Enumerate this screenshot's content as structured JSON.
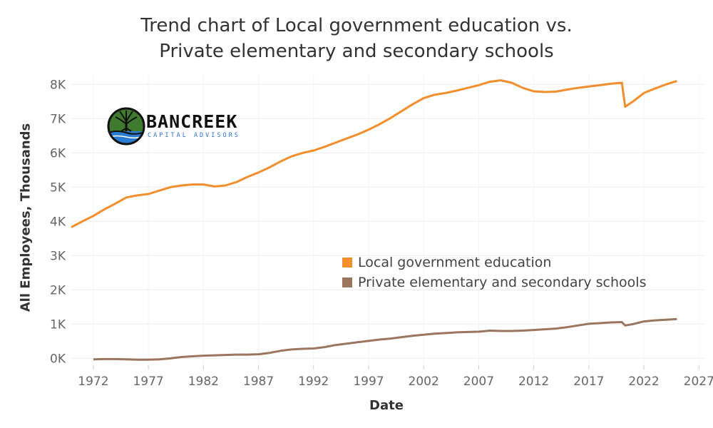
{
  "chart_data": {
    "type": "line",
    "title": [
      "Trend chart of Local government education vs.",
      "Private elementary and secondary schools"
    ],
    "xlabel": "Date",
    "ylabel": "All Employees, Thousands",
    "x_ticks": [
      "1972",
      "1977",
      "1982",
      "1987",
      "1992",
      "1997",
      "2002",
      "2007",
      "2012",
      "2017",
      "2022",
      "2027"
    ],
    "y_ticks": [
      "0K",
      "1K",
      "2K",
      "3K",
      "4K",
      "5K",
      "6K",
      "7K",
      "8K"
    ],
    "xlim": [
      1970,
      2027.5
    ],
    "ylim": [
      -200,
      8300
    ],
    "grid": true,
    "legend_position": "center-right",
    "series": [
      {
        "name": "Local government education",
        "color": "#f28e2b",
        "points": [
          [
            1970.0,
            3830
          ],
          [
            1971.0,
            4000
          ],
          [
            1972.0,
            4160
          ],
          [
            1973.0,
            4350
          ],
          [
            1974.0,
            4520
          ],
          [
            1975.0,
            4700
          ],
          [
            1976.0,
            4760
          ],
          [
            1977.0,
            4800
          ],
          [
            1978.0,
            4900
          ],
          [
            1979.0,
            5000
          ],
          [
            1980.0,
            5050
          ],
          [
            1981.0,
            5080
          ],
          [
            1982.0,
            5080
          ],
          [
            1983.0,
            5020
          ],
          [
            1984.0,
            5050
          ],
          [
            1985.0,
            5150
          ],
          [
            1986.0,
            5300
          ],
          [
            1987.0,
            5430
          ],
          [
            1988.0,
            5580
          ],
          [
            1989.0,
            5750
          ],
          [
            1990.0,
            5900
          ],
          [
            1991.0,
            6000
          ],
          [
            1992.0,
            6070
          ],
          [
            1993.0,
            6180
          ],
          [
            1994.0,
            6300
          ],
          [
            1995.0,
            6420
          ],
          [
            1996.0,
            6540
          ],
          [
            1997.0,
            6680
          ],
          [
            1998.0,
            6840
          ],
          [
            1999.0,
            7020
          ],
          [
            2000.0,
            7220
          ],
          [
            2001.0,
            7420
          ],
          [
            2002.0,
            7600
          ],
          [
            2003.0,
            7700
          ],
          [
            2004.0,
            7750
          ],
          [
            2005.0,
            7820
          ],
          [
            2006.0,
            7900
          ],
          [
            2007.0,
            7980
          ],
          [
            2008.0,
            8080
          ],
          [
            2009.0,
            8120
          ],
          [
            2010.0,
            8050
          ],
          [
            2011.0,
            7900
          ],
          [
            2012.0,
            7800
          ],
          [
            2013.0,
            7780
          ],
          [
            2014.0,
            7790
          ],
          [
            2015.0,
            7850
          ],
          [
            2016.0,
            7900
          ],
          [
            2017.0,
            7940
          ],
          [
            2018.0,
            7980
          ],
          [
            2019.0,
            8020
          ],
          [
            2020.0,
            8050
          ],
          [
            2020.3,
            7350
          ],
          [
            2021.0,
            7500
          ],
          [
            2022.0,
            7750
          ],
          [
            2023.0,
            7880
          ],
          [
            2024.0,
            8000
          ],
          [
            2025.0,
            8100
          ]
        ]
      },
      {
        "name": "Private elementary and secondary schools",
        "color": "#9c755f",
        "points": [
          [
            1972.0,
            -30
          ],
          [
            1973.0,
            -20
          ],
          [
            1974.0,
            -20
          ],
          [
            1975.0,
            -30
          ],
          [
            1976.0,
            -40
          ],
          [
            1977.0,
            -40
          ],
          [
            1978.0,
            -30
          ],
          [
            1979.0,
            0
          ],
          [
            1980.0,
            40
          ],
          [
            1981.0,
            60
          ],
          [
            1982.0,
            80
          ],
          [
            1983.0,
            90
          ],
          [
            1984.0,
            100
          ],
          [
            1985.0,
            110
          ],
          [
            1986.0,
            110
          ],
          [
            1987.0,
            120
          ],
          [
            1988.0,
            160
          ],
          [
            1989.0,
            220
          ],
          [
            1990.0,
            260
          ],
          [
            1991.0,
            280
          ],
          [
            1992.0,
            290
          ],
          [
            1993.0,
            330
          ],
          [
            1994.0,
            390
          ],
          [
            1995.0,
            430
          ],
          [
            1996.0,
            470
          ],
          [
            1997.0,
            510
          ],
          [
            1998.0,
            550
          ],
          [
            1999.0,
            580
          ],
          [
            2000.0,
            620
          ],
          [
            2001.0,
            660
          ],
          [
            2002.0,
            690
          ],
          [
            2003.0,
            720
          ],
          [
            2004.0,
            740
          ],
          [
            2005.0,
            760
          ],
          [
            2006.0,
            770
          ],
          [
            2007.0,
            780
          ],
          [
            2008.0,
            810
          ],
          [
            2009.0,
            800
          ],
          [
            2010.0,
            800
          ],
          [
            2011.0,
            810
          ],
          [
            2012.0,
            830
          ],
          [
            2013.0,
            850
          ],
          [
            2014.0,
            870
          ],
          [
            2015.0,
            910
          ],
          [
            2016.0,
            960
          ],
          [
            2017.0,
            1010
          ],
          [
            2018.0,
            1030
          ],
          [
            2019.0,
            1050
          ],
          [
            2020.0,
            1060
          ],
          [
            2020.3,
            960
          ],
          [
            2021.0,
            1000
          ],
          [
            2022.0,
            1080
          ],
          [
            2023.0,
            1110
          ],
          [
            2024.0,
            1130
          ],
          [
            2025.0,
            1150
          ]
        ]
      }
    ]
  },
  "logo": {
    "name": "BANCREEK",
    "subtitle": "CAPITAL ADVISORS",
    "colors": {
      "green": "#3f7a2e",
      "blue": "#2a7bd4",
      "dark": "#111111"
    }
  }
}
